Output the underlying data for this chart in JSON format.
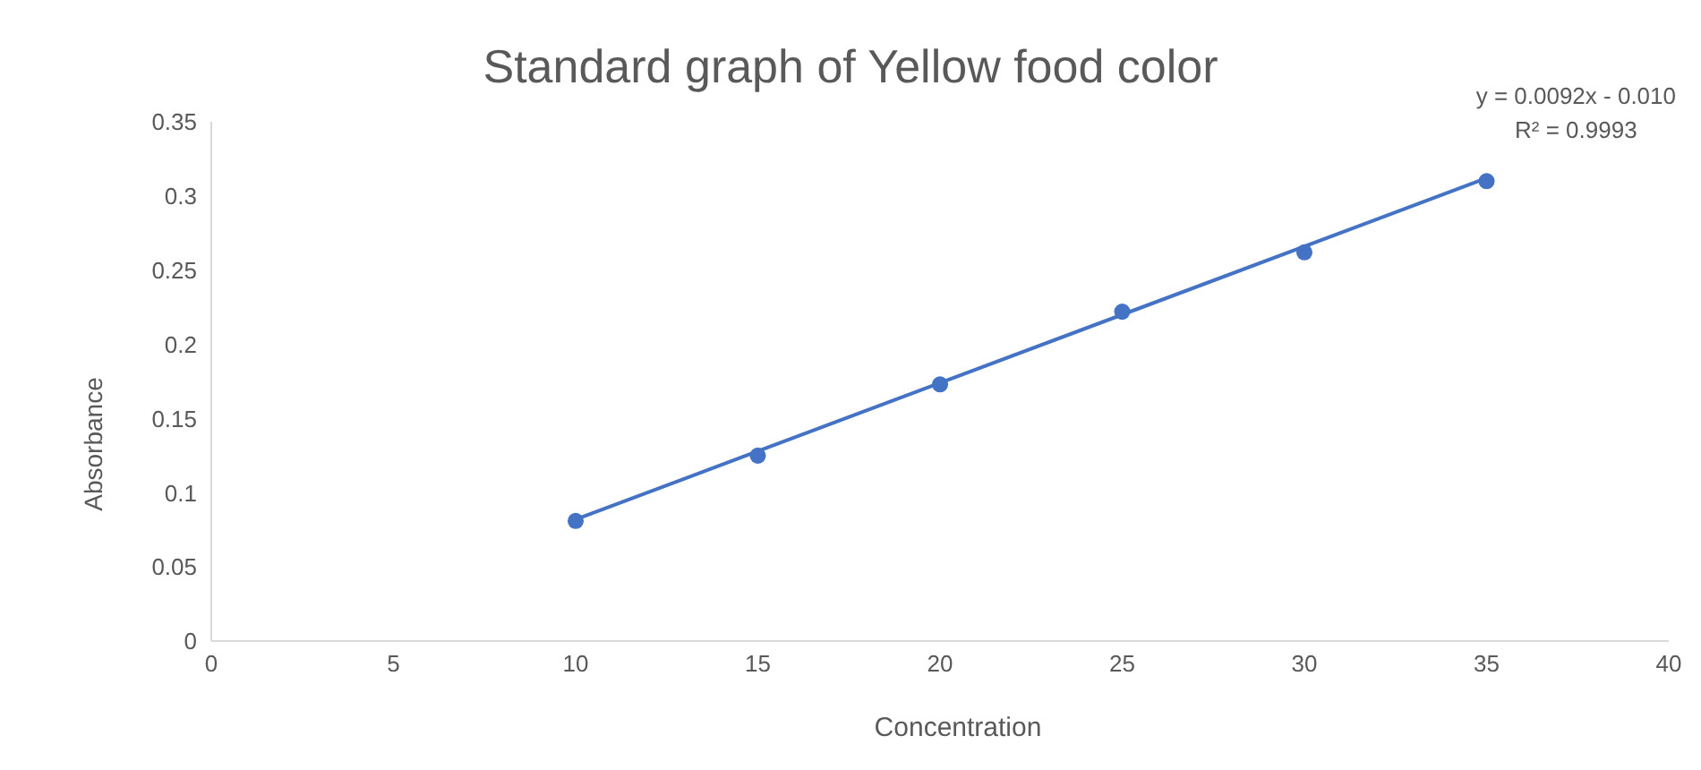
{
  "chart_data": {
    "type": "scatter",
    "title": "Standard graph of Yellow food color",
    "xlabel": "Concentration",
    "ylabel": "Absorbance",
    "x": [
      10,
      15,
      20,
      25,
      30,
      35
    ],
    "series": [
      {
        "color": "#4472c4",
        "values": [
          0.081,
          0.125,
          0.173,
          0.222,
          0.262,
          0.31
        ]
      },
      {
        "type": "line",
        "marker": "none",
        "color": "#4472c4",
        "x": [
          10,
          35
        ],
        "values": [
          0.082,
          0.312
        ]
      }
    ],
    "annotations": [
      "y = 0.0092x - 0.010",
      "R² = 0.9993"
    ],
    "xlim": [
      0,
      40
    ],
    "xticks": [
      0,
      5,
      10,
      15,
      20,
      25,
      30,
      35,
      40
    ],
    "ylim": [
      0,
      0.35
    ],
    "yticks": [
      0,
      0.05,
      0.1,
      0.15,
      0.2,
      0.25,
      0.3,
      0.35
    ],
    "marker": "circle",
    "grid": false,
    "legend": false
  }
}
